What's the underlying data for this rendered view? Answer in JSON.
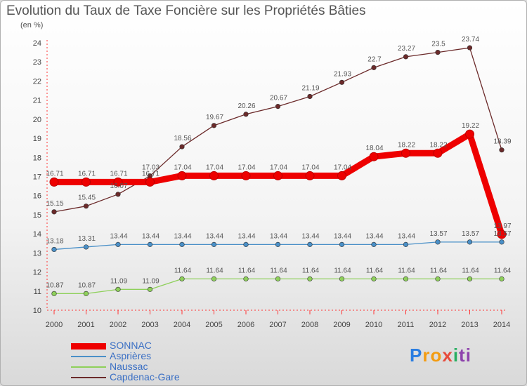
{
  "title": "Evolution du Taux de Taxe Foncière sur les Propriétés Bâties",
  "unit_label": "(en %)",
  "logo_text": "Proxiti",
  "chart_data": {
    "type": "line",
    "x": [
      "2000",
      "2001",
      "2002",
      "2003",
      "2004",
      "2005",
      "2006",
      "2007",
      "2008",
      "2009",
      "2010",
      "2011",
      "2012",
      "2013",
      "2014"
    ],
    "ylim": [
      10,
      24
    ],
    "yticks": [
      10,
      11,
      12,
      13,
      14,
      15,
      16,
      17,
      18,
      19,
      20,
      21,
      22,
      23,
      24
    ],
    "grid": false,
    "legend_position": "bottom-left",
    "series": [
      {
        "name": "SONNAC",
        "color": "#ee0000",
        "values": [
          16.71,
          16.71,
          16.71,
          16.71,
          17.04,
          17.04,
          17.04,
          17.04,
          17.04,
          17.04,
          18.04,
          18.22,
          18.22,
          19.22,
          13.97
        ]
      },
      {
        "name": "Asprières",
        "color": "#4a90c8",
        "values": [
          13.18,
          13.31,
          13.44,
          13.44,
          13.44,
          13.44,
          13.44,
          13.44,
          13.44,
          13.44,
          13.44,
          13.44,
          13.57,
          13.57,
          13.57
        ]
      },
      {
        "name": "Naussac",
        "color": "#8ed05a",
        "values": [
          10.87,
          10.87,
          11.09,
          11.09,
          11.64,
          11.64,
          11.64,
          11.64,
          11.64,
          11.64,
          11.64,
          11.64,
          11.64,
          11.64,
          11.64
        ]
      },
      {
        "name": "Capdenac-Gare",
        "color": "#6b2a2a",
        "values": [
          15.15,
          15.45,
          16.07,
          17.03,
          18.56,
          19.67,
          20.26,
          20.67,
          21.19,
          21.93,
          22.7,
          23.27,
          23.5,
          23.74,
          18.39
        ]
      }
    ]
  }
}
